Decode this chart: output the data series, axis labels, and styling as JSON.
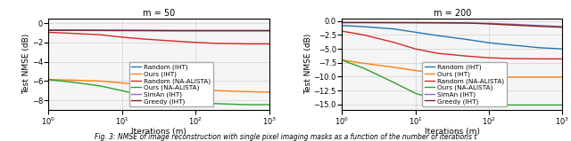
{
  "title_left": "m = 50",
  "title_right": "m = 200",
  "xlabel": "Iterations (m)",
  "ylabel": "Test NMSE (dB)",
  "caption": "Fig. 3: NMSE of image reconstruction with single pixel imaging masks as a function of the number of iterations t",
  "left_ylim": [
    -9,
    0.5
  ],
  "right_ylim": [
    -16,
    0.5
  ],
  "left_yticks": [
    0,
    -2,
    -4,
    -6,
    -8
  ],
  "right_yticks": [
    0.0,
    -2.5,
    -5.0,
    -7.5,
    -10.0,
    -12.5,
    -15.0
  ],
  "colors": {
    "Random (IHT)": "#1f77b4",
    "Ours (IHT)": "#ff7f0e",
    "Random (NA-ALISTA)": "#d62728",
    "Ours (NA-ALISTA)": "#2ca02c",
    "SimAn (IHT)": "#9467bd",
    "Greedy (IHT)": "#7f2020"
  },
  "left_data": {
    "Random (IHT)": {
      "x": [
        1,
        2,
        5,
        10,
        20,
        50,
        100,
        200,
        500,
        1000
      ],
      "y": [
        -0.75,
        -0.75,
        -0.76,
        -0.77,
        -0.77,
        -0.78,
        -0.78,
        -0.78,
        -0.78,
        -0.78
      ]
    },
    "Ours (IHT)": {
      "x": [
        1,
        2,
        5,
        10,
        20,
        50,
        100,
        200,
        500,
        1000
      ],
      "y": [
        -5.85,
        -5.9,
        -6.0,
        -6.2,
        -6.4,
        -6.6,
        -6.8,
        -7.0,
        -7.1,
        -7.15
      ]
    },
    "Random (NA-ALISTA)": {
      "x": [
        1,
        2,
        5,
        10,
        20,
        50,
        100,
        200,
        500,
        2000
      ],
      "y": [
        -0.95,
        -1.05,
        -1.2,
        -1.45,
        -1.65,
        -1.85,
        -2.0,
        -2.1,
        -2.15,
        -2.15
      ]
    },
    "Ours (NA-ALISTA)": {
      "x": [
        1,
        2,
        5,
        10,
        20,
        50,
        100,
        200,
        500,
        2000
      ],
      "y": [
        -5.85,
        -6.1,
        -6.5,
        -7.0,
        -7.5,
        -7.95,
        -8.2,
        -8.35,
        -8.45,
        -8.45
      ]
    },
    "SimAn (IHT)": {
      "x": [
        1,
        2,
        5,
        10,
        20,
        50,
        100,
        200,
        500,
        1000
      ],
      "y": [
        -0.75,
        -0.75,
        -0.76,
        -0.77,
        -0.77,
        -0.78,
        -0.78,
        -0.78,
        -0.78,
        -0.78
      ]
    },
    "Greedy (IHT)": {
      "x": [
        1,
        2,
        5,
        10,
        20,
        50,
        100,
        200,
        500,
        1000
      ],
      "y": [
        -0.73,
        -0.73,
        -0.74,
        -0.75,
        -0.76,
        -0.77,
        -0.77,
        -0.77,
        -0.77,
        -0.77
      ]
    }
  },
  "right_data": {
    "Random (IHT)": {
      "x": [
        1,
        2,
        5,
        10,
        20,
        50,
        100,
        200,
        500,
        1000
      ],
      "y": [
        -0.8,
        -1.0,
        -1.4,
        -2.0,
        -2.6,
        -3.3,
        -3.9,
        -4.3,
        -4.8,
        -5.0
      ]
    },
    "Ours (IHT)": {
      "x": [
        1,
        2,
        5,
        10,
        20,
        50,
        100,
        200,
        500,
        2000
      ],
      "y": [
        -7.0,
        -7.6,
        -8.3,
        -8.9,
        -9.4,
        -9.8,
        -10.0,
        -10.1,
        -10.1,
        -10.1
      ]
    },
    "Random (NA-ALISTA)": {
      "x": [
        1,
        2,
        5,
        10,
        20,
        50,
        100,
        200,
        500,
        2000
      ],
      "y": [
        -1.8,
        -2.5,
        -3.8,
        -5.0,
        -5.8,
        -6.3,
        -6.6,
        -6.75,
        -6.8,
        -6.8
      ]
    },
    "Ours (NA-ALISTA)": {
      "x": [
        1,
        2,
        5,
        10,
        20,
        50,
        100,
        200,
        500,
        2000
      ],
      "y": [
        -7.0,
        -8.5,
        -11.0,
        -13.0,
        -14.2,
        -14.9,
        -15.1,
        -15.1,
        -15.1,
        -15.1
      ]
    },
    "SimAn (IHT)": {
      "x": [
        1,
        2,
        5,
        10,
        20,
        50,
        100,
        200,
        500,
        1000
      ],
      "y": [
        -0.3,
        -0.3,
        -0.3,
        -0.3,
        -0.32,
        -0.35,
        -0.4,
        -0.55,
        -0.8,
        -1.0
      ]
    },
    "Greedy (IHT)": {
      "x": [
        1,
        2,
        5,
        10,
        20,
        50,
        100,
        200,
        500,
        1000
      ],
      "y": [
        -0.25,
        -0.25,
        -0.27,
        -0.28,
        -0.3,
        -0.35,
        -0.5,
        -0.7,
        -0.95,
        -1.1
      ]
    }
  }
}
